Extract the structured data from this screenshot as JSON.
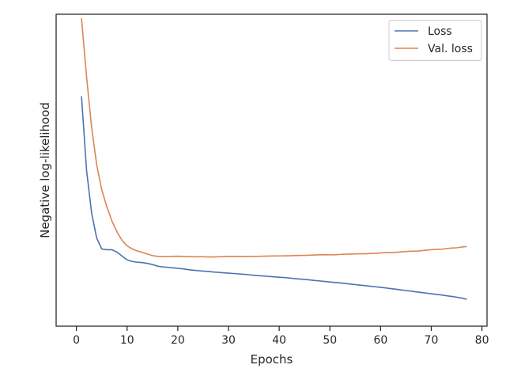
{
  "chart_data": {
    "type": "line",
    "title": "",
    "xlabel": "Epochs",
    "ylabel": "Negative log-likelihood",
    "xlim": [
      -4,
      81
    ],
    "ylim": [
      -0.35,
      3.65
    ],
    "x_ticks": [
      0,
      10,
      20,
      30,
      40,
      50,
      60,
      70,
      80
    ],
    "x_tick_labels": [
      "0",
      "10",
      "20",
      "30",
      "40",
      "50",
      "60",
      "70",
      "80"
    ],
    "y_ticks_shown": false,
    "grid": false,
    "legend_position": "top-right",
    "series": [
      {
        "name": "Loss",
        "color": "#4c72b0",
        "x": [
          1,
          2,
          3,
          4,
          5,
          6,
          7,
          8,
          9,
          10,
          11,
          12,
          13,
          14,
          15,
          16,
          17,
          18,
          19,
          20,
          21,
          22,
          23,
          24,
          25,
          26,
          27,
          28,
          29,
          30,
          31,
          32,
          33,
          34,
          35,
          36,
          37,
          38,
          39,
          40,
          41,
          42,
          43,
          44,
          45,
          46,
          47,
          48,
          49,
          50,
          51,
          52,
          53,
          54,
          55,
          56,
          57,
          58,
          59,
          60,
          61,
          62,
          63,
          64,
          65,
          66,
          67,
          68,
          69,
          70,
          71,
          72,
          73,
          74,
          75,
          76,
          77
        ],
        "values": [
          2.6,
          1.65,
          1.1,
          0.78,
          0.64,
          0.63,
          0.63,
          0.6,
          0.55,
          0.5,
          0.48,
          0.47,
          0.465,
          0.455,
          0.44,
          0.42,
          0.41,
          0.405,
          0.398,
          0.392,
          0.385,
          0.375,
          0.368,
          0.362,
          0.356,
          0.352,
          0.345,
          0.34,
          0.335,
          0.33,
          0.325,
          0.32,
          0.316,
          0.31,
          0.303,
          0.298,
          0.293,
          0.288,
          0.283,
          0.278,
          0.273,
          0.268,
          0.26,
          0.255,
          0.25,
          0.243,
          0.236,
          0.23,
          0.223,
          0.217,
          0.21,
          0.205,
          0.198,
          0.19,
          0.183,
          0.176,
          0.17,
          0.162,
          0.155,
          0.148,
          0.14,
          0.132,
          0.124,
          0.115,
          0.107,
          0.1,
          0.09,
          0.082,
          0.074,
          0.066,
          0.058,
          0.05,
          0.04,
          0.031,
          0.022,
          0.01,
          -0.005
        ]
      },
      {
        "name": "Val. loss",
        "color": "#dd8452",
        "x": [
          1,
          2,
          3,
          4,
          5,
          6,
          7,
          8,
          9,
          10,
          11,
          12,
          13,
          14,
          15,
          16,
          17,
          18,
          19,
          20,
          21,
          22,
          23,
          24,
          25,
          26,
          27,
          28,
          29,
          30,
          31,
          32,
          33,
          34,
          35,
          36,
          37,
          38,
          39,
          40,
          41,
          42,
          43,
          44,
          45,
          46,
          47,
          48,
          49,
          50,
          51,
          52,
          53,
          54,
          55,
          56,
          57,
          58,
          59,
          60,
          61,
          62,
          63,
          64,
          65,
          66,
          67,
          68,
          69,
          70,
          71,
          72,
          73,
          74,
          75,
          76,
          77
        ],
        "values": [
          3.6,
          2.85,
          2.2,
          1.72,
          1.4,
          1.18,
          1.0,
          0.86,
          0.75,
          0.68,
          0.64,
          0.615,
          0.595,
          0.575,
          0.555,
          0.545,
          0.542,
          0.542,
          0.545,
          0.547,
          0.545,
          0.542,
          0.54,
          0.54,
          0.54,
          0.538,
          0.538,
          0.54,
          0.542,
          0.544,
          0.545,
          0.544,
          0.543,
          0.543,
          0.544,
          0.546,
          0.548,
          0.549,
          0.55,
          0.551,
          0.552,
          0.553,
          0.555,
          0.557,
          0.558,
          0.56,
          0.563,
          0.566,
          0.567,
          0.565,
          0.566,
          0.57,
          0.573,
          0.575,
          0.577,
          0.578,
          0.578,
          0.582,
          0.585,
          0.59,
          0.593,
          0.594,
          0.597,
          0.602,
          0.608,
          0.612,
          0.612,
          0.618,
          0.625,
          0.63,
          0.635,
          0.637,
          0.645,
          0.652,
          0.655,
          0.665,
          0.672
        ]
      }
    ]
  }
}
